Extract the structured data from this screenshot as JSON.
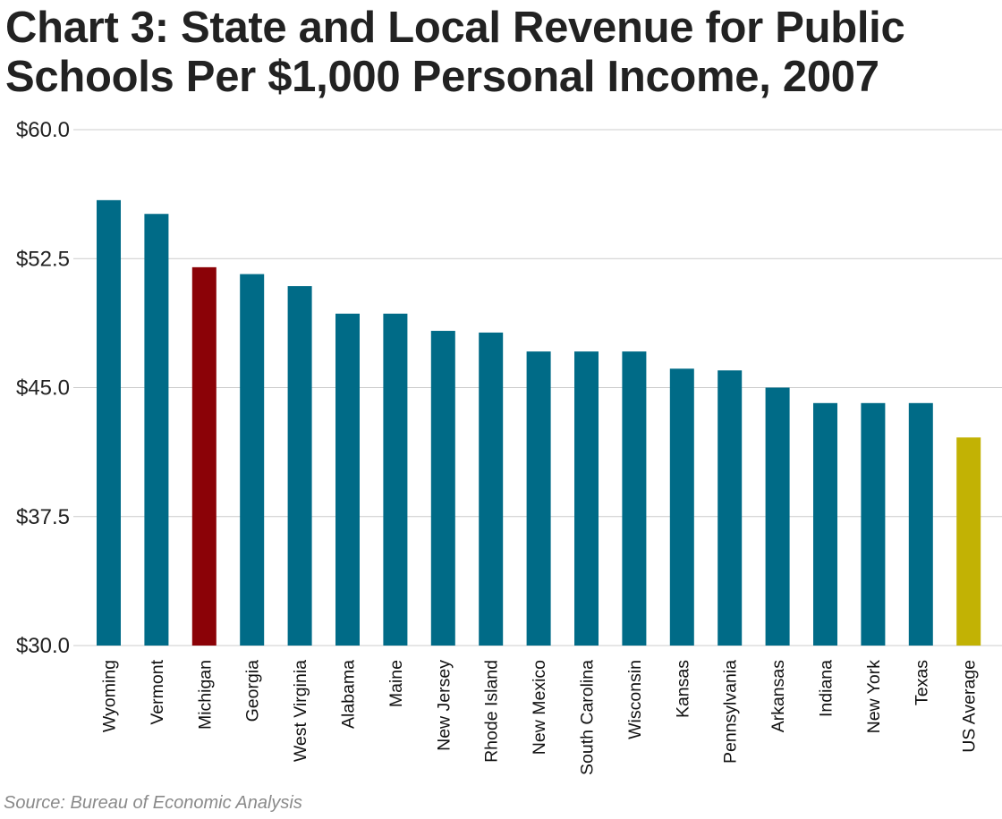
{
  "chart_data": {
    "type": "bar",
    "title": "Chart 3: State and Local Revenue for Public Schools Per $1,000 Personal Income, 2007",
    "xlabel": "",
    "ylabel": "",
    "ylim": [
      30,
      60
    ],
    "yticks": [
      60,
      52.5,
      45,
      37.5,
      30
    ],
    "ytick_labels": [
      "$60.0",
      "$52.5",
      "$45.0",
      "$37.5",
      "$30.0"
    ],
    "grid": true,
    "categories": [
      "Wyoming",
      "Vermont",
      "Michigan",
      "Georgia",
      "West Virginia",
      "Alabama",
      "Maine",
      "New Jersey",
      "Rhode Island",
      "New Mexico",
      "South Carolina",
      "Wisconsin",
      "Kansas",
      "Pennsylvania",
      "Arkansas",
      "Indiana",
      "New York",
      "Texas",
      "US Average"
    ],
    "values": [
      55.9,
      55.1,
      52.0,
      51.6,
      50.9,
      49.3,
      49.3,
      48.3,
      48.2,
      47.1,
      47.1,
      47.1,
      46.1,
      46.0,
      45.0,
      44.1,
      44.1,
      44.1,
      42.1
    ],
    "bar_colors": [
      "#006b87",
      "#006b87",
      "#8b0207",
      "#006b87",
      "#006b87",
      "#006b87",
      "#006b87",
      "#006b87",
      "#006b87",
      "#006b87",
      "#006b87",
      "#006b87",
      "#006b87",
      "#006b87",
      "#006b87",
      "#006b87",
      "#006b87",
      "#006b87",
      "#c2b204"
    ]
  },
  "source": "Source: Bureau of Economic Analysis"
}
